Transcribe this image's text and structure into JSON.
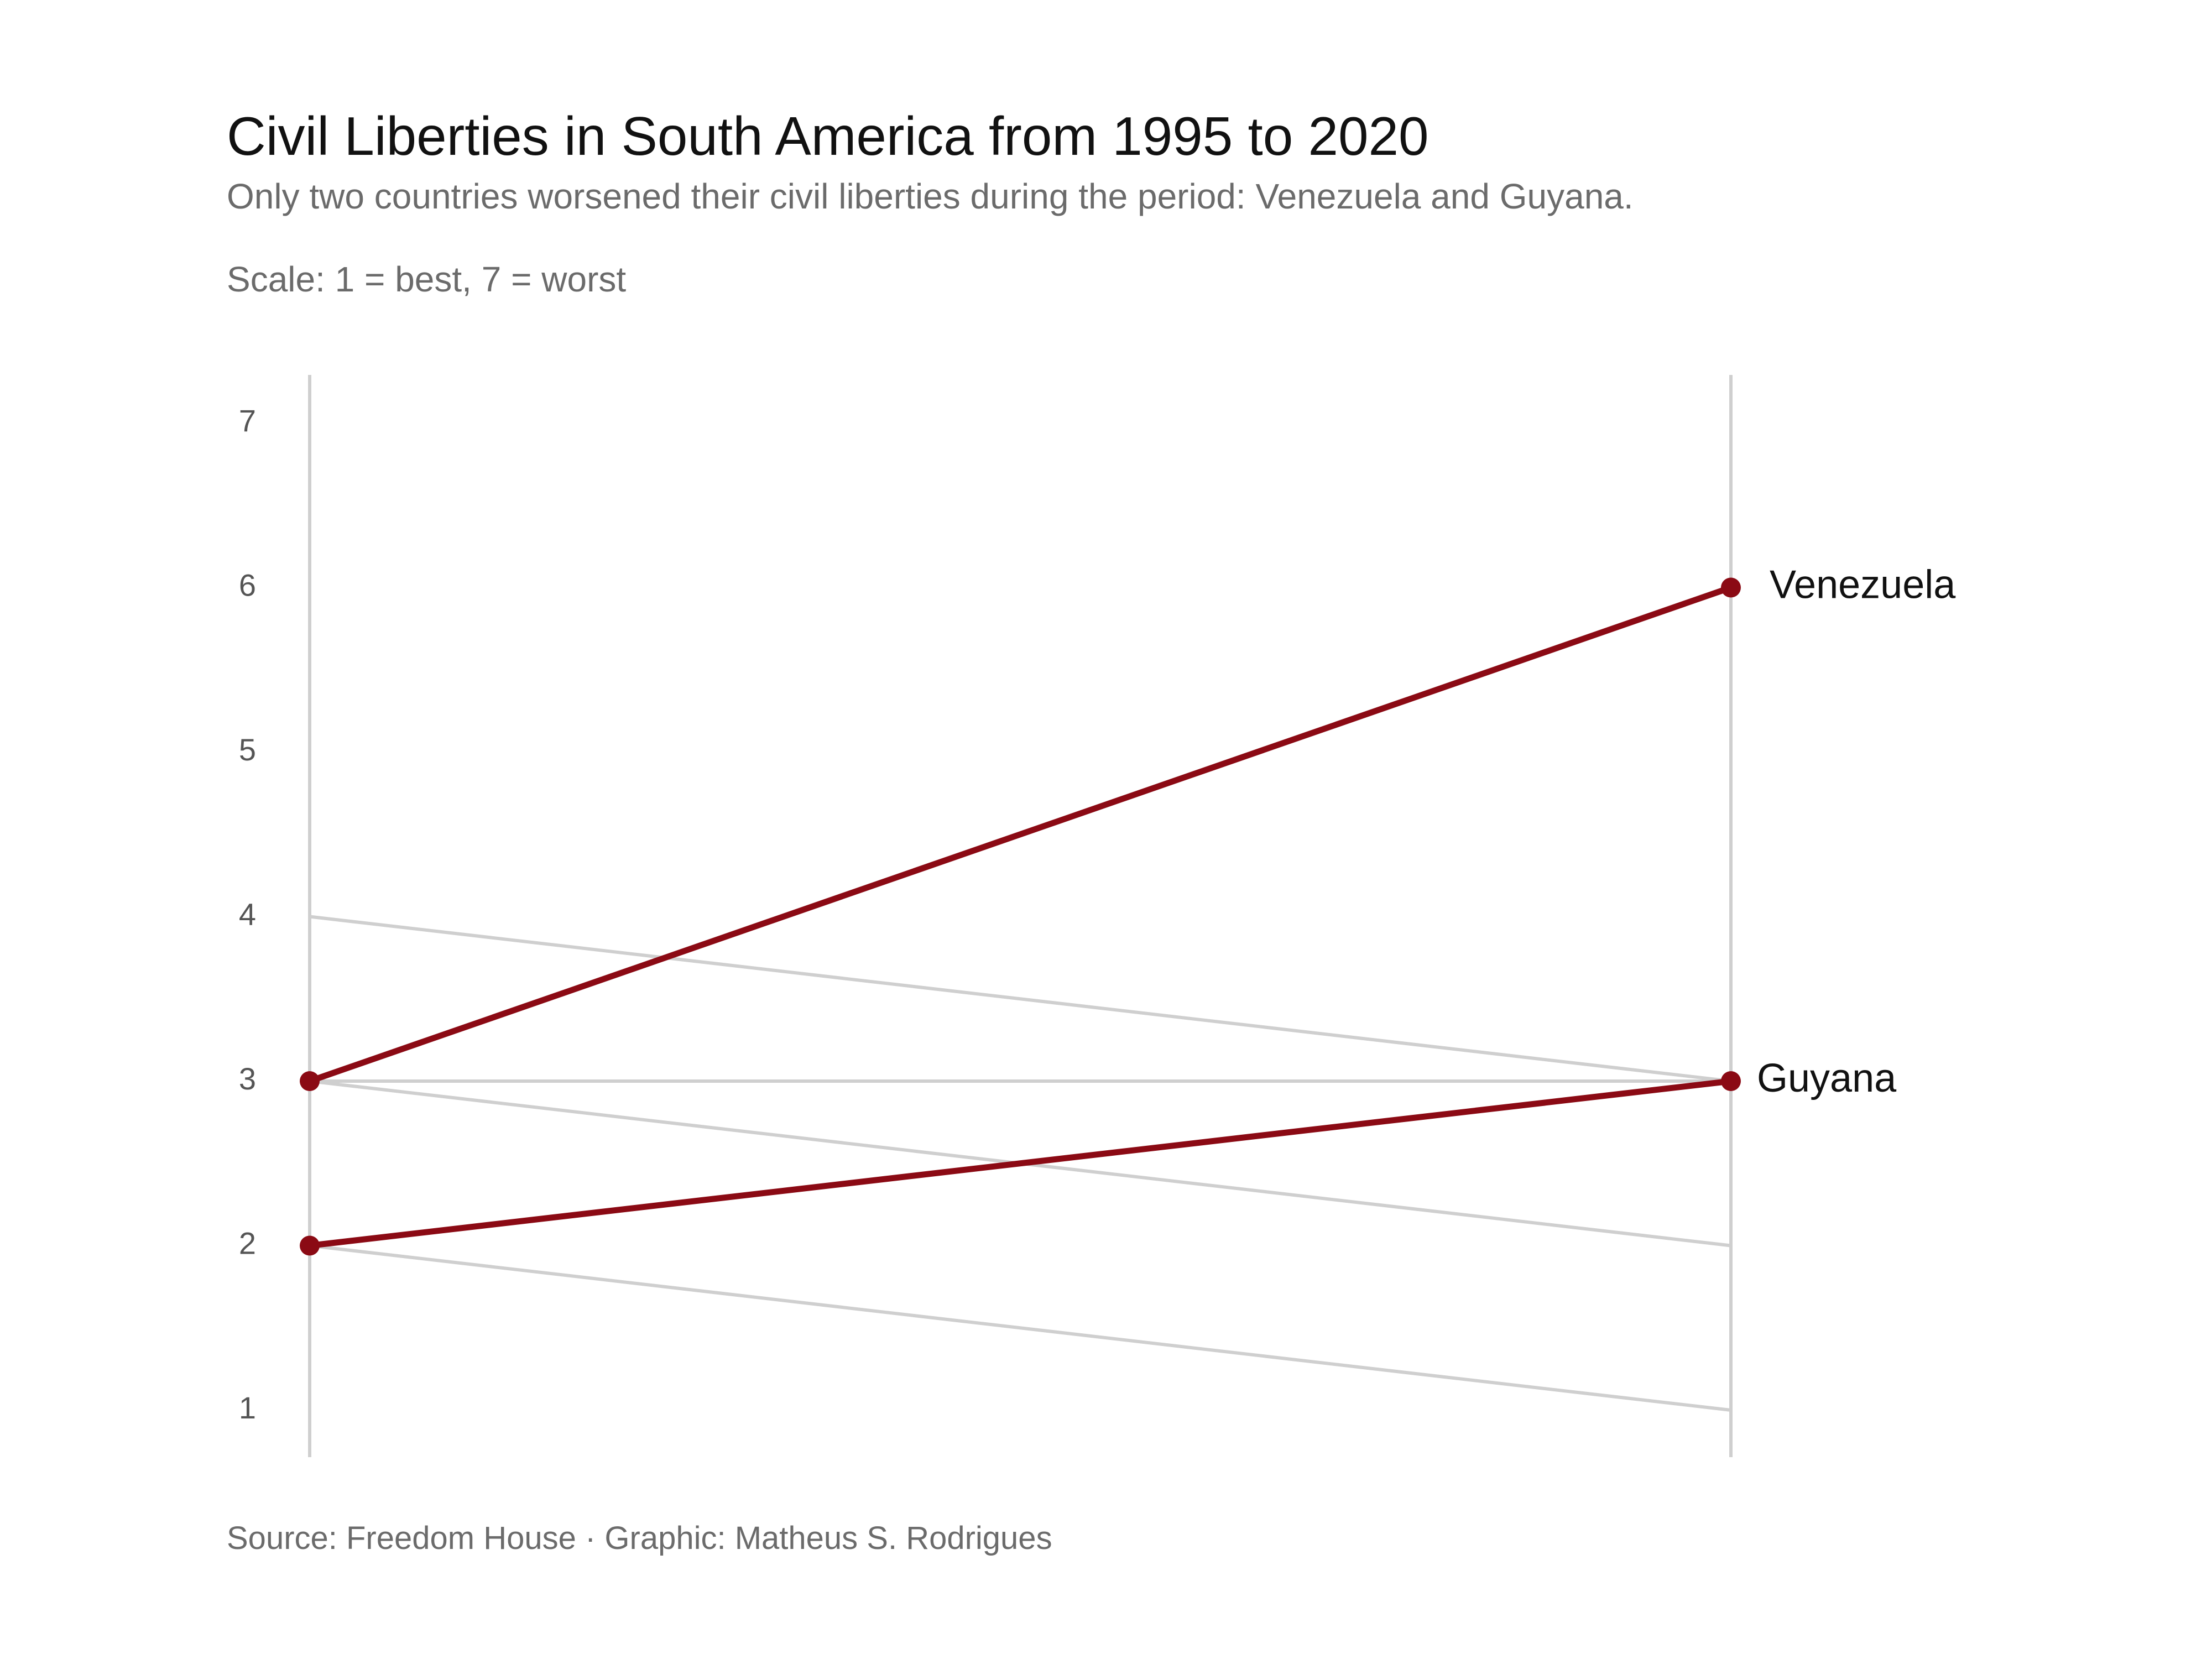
{
  "title": "Civil Liberties in South America from 1995 to 2020",
  "subtitle": "Only two countries worsened their civil liberties during the period: Venezuela and Guyana.",
  "scale_note": "Scale: 1 = best, 7 = worst",
  "caption": "Source: Freedom House · Graphic: Matheus S. Rodrigues",
  "colors": {
    "highlight": "#8b0a14",
    "other": "#cfcfcf",
    "axis": "#cfcfcf"
  },
  "chart_data": {
    "type": "line",
    "chart_style": "slope",
    "x": [
      1995,
      2020
    ],
    "ylim": [
      1,
      7
    ],
    "yticks": [
      "1",
      "2",
      "3",
      "4",
      "5",
      "6",
      "7"
    ],
    "grid": false,
    "series": [
      {
        "name": "Venezuela",
        "values": [
          3,
          6
        ],
        "highlight": true,
        "label": "Venezuela"
      },
      {
        "name": "Guyana",
        "values": [
          2,
          3
        ],
        "highlight": true,
        "label": "Guyana"
      },
      {
        "values": [
          4,
          3
        ],
        "highlight": false
      },
      {
        "values": [
          3,
          3
        ],
        "highlight": false
      },
      {
        "values": [
          3,
          2
        ],
        "highlight": false
      },
      {
        "values": [
          2,
          1
        ],
        "highlight": false
      }
    ]
  }
}
